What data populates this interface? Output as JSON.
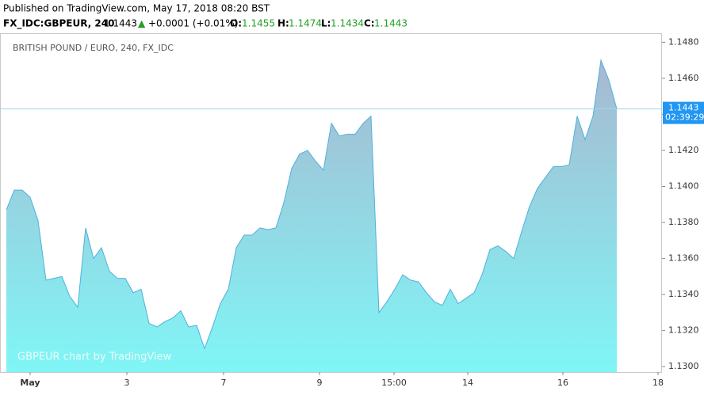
{
  "header": {
    "published": "Published on TradingView.com, May 17, 2018 08:20 BST",
    "symbol": "FX_IDC:GBPEUR, 240",
    "price": "1.1443",
    "arrow": "▲",
    "change": "+0.0001 (+0.01%)",
    "open_label": "O:",
    "open": "1.1455",
    "high_label": "H:",
    "high": "1.1474",
    "low_label": "L:",
    "low": "1.1434",
    "close_label": "C:",
    "close": "1.1443"
  },
  "chart_data": {
    "type": "area",
    "title": "BRITISH POUND / EURO, 240, FX_IDC",
    "watermark": "GBPEUR chart by TradingView",
    "color": "#4fb0de",
    "fill_top": "#a8b8d0",
    "fill_bottom": "#7ff6f6",
    "x": [
      0,
      1,
      2,
      3,
      4,
      5,
      6,
      7,
      8,
      9,
      10,
      11,
      12,
      13,
      14,
      15,
      16,
      17,
      18,
      19,
      20,
      21,
      22,
      23,
      24,
      25,
      26,
      27,
      28,
      29,
      30,
      31,
      32,
      33,
      34,
      35,
      36,
      37,
      38,
      39,
      40,
      41,
      42,
      43,
      44,
      45,
      46,
      47,
      48,
      49,
      50,
      51,
      52,
      53,
      54,
      55,
      56,
      57,
      58,
      59,
      60,
      61,
      62,
      63,
      64,
      65,
      66,
      67,
      68,
      69,
      70,
      71,
      72,
      73,
      74,
      75,
      76,
      77
    ],
    "values": [
      1.1387,
      1.1398,
      1.1398,
      1.1394,
      1.1381,
      1.1348,
      1.1349,
      1.135,
      1.1339,
      1.1333,
      1.1377,
      1.136,
      1.1366,
      1.1353,
      1.1349,
      1.1349,
      1.1341,
      1.1343,
      1.1324,
      1.1322,
      1.1325,
      1.1327,
      1.1331,
      1.1322,
      1.1323,
      1.131,
      1.1322,
      1.1335,
      1.1343,
      1.1366,
      1.1373,
      1.1373,
      1.1377,
      1.1376,
      1.1377,
      1.1391,
      1.141,
      1.1418,
      1.142,
      1.1414,
      1.1409,
      1.1435,
      1.1428,
      1.1429,
      1.1429,
      1.1435,
      1.1439,
      1.133,
      1.1336,
      1.1343,
      1.1351,
      1.1348,
      1.1347,
      1.1341,
      1.1336,
      1.1334,
      1.1343,
      1.1335,
      1.1338,
      1.1341,
      1.1351,
      1.1365,
      1.1367,
      1.1364,
      1.136,
      1.1375,
      1.1389,
      1.1399,
      1.1405,
      1.1411,
      1.1411,
      1.1412,
      1.1439,
      1.1426,
      1.1439,
      1.147,
      1.1459,
      1.1443
    ],
    "last_value": 1.1443,
    "countdown": "02:39:29",
    "xlim": [
      -0.8,
      82.7
    ],
    "xticks": [
      {
        "value": 3,
        "label": "May"
      },
      {
        "value": 15.2,
        "label": "3"
      },
      {
        "value": 27.4,
        "label": "7"
      },
      {
        "value": 39.5,
        "label": "9"
      },
      {
        "value": 48.9,
        "label": "15:00"
      },
      {
        "value": 58.2,
        "label": "14"
      },
      {
        "value": 70.2,
        "label": "16"
      },
      {
        "value": 82.2,
        "label": "18"
      }
    ],
    "ylim": [
      1.1297,
      1.1485
    ],
    "yticks": [
      {
        "value": 1.13,
        "label": "1.1300"
      },
      {
        "value": 1.132,
        "label": "1.1320"
      },
      {
        "value": 1.134,
        "label": "1.1340"
      },
      {
        "value": 1.136,
        "label": "1.1360"
      },
      {
        "value": 1.138,
        "label": "1.1380"
      },
      {
        "value": 1.14,
        "label": "1.1400"
      },
      {
        "value": 1.142,
        "label": "1.1420"
      },
      {
        "value": 1.144,
        "label": "1.1440"
      },
      {
        "value": 1.146,
        "label": "1.1460"
      },
      {
        "value": 1.148,
        "label": "1.1480"
      }
    ]
  }
}
